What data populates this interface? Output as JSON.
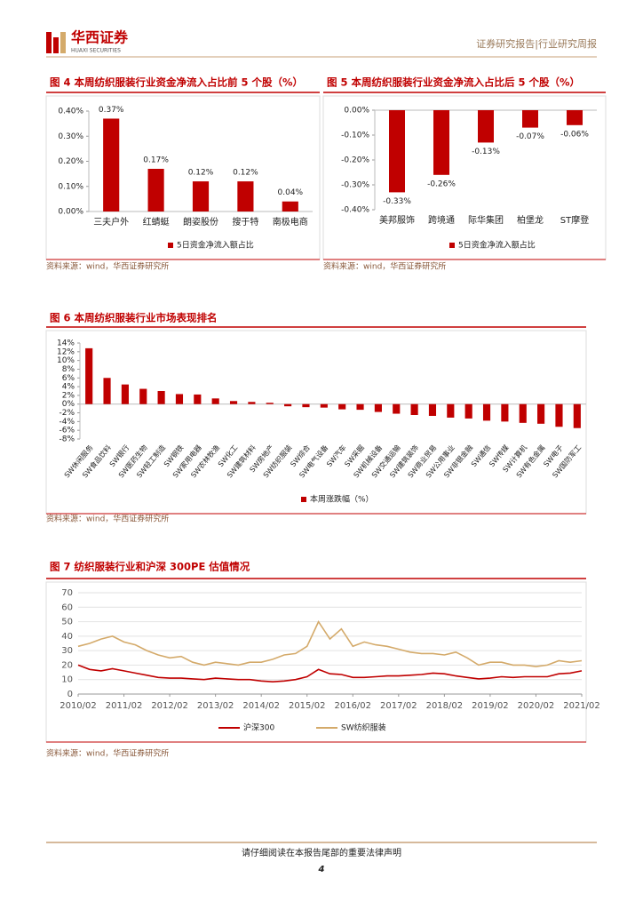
{
  "header": {
    "logo": "华西证券",
    "logo_en": "HUAXI SECURITIES",
    "report_type": "证券研究报告|行业研究周报"
  },
  "chart_data": [
    {
      "type": "bar",
      "title": "图 4 本周纺织服装行业资金净流入占比前 5 个股（%）",
      "categories": [
        "三夫户外",
        "红蜻蜓",
        "朗姿股份",
        "搜于特",
        "南极电商"
      ],
      "series": [
        {
          "name": "5日资金净流入额占比",
          "color": "#c00000",
          "values": [
            0.37,
            0.17,
            0.12,
            0.12,
            0.04
          ],
          "value_labels": [
            "0.37%",
            "0.17%",
            "0.12%",
            "0.12%",
            "0.04%"
          ]
        }
      ],
      "ylim": [
        0,
        0.4
      ],
      "yticks": [
        {
          "value": 0,
          "label": "0.00%"
        },
        {
          "value": 0.1,
          "label": "0.10%"
        },
        {
          "value": 0.2,
          "label": "0.20%"
        },
        {
          "value": 0.3,
          "label": "0.30%"
        },
        {
          "value": 0.4,
          "label": "0.40%"
        }
      ],
      "legend": "bottom",
      "source": "资料来源：wind，华西证券研究所"
    },
    {
      "type": "bar",
      "title": "图 5 本周纺织服装行业资金净流入占比后 5 个股（%）",
      "categories": [
        "美邦服饰",
        "跨境通",
        "际华集团",
        "柏堡龙",
        "ST摩登"
      ],
      "series": [
        {
          "name": "5日资金净流入额占比",
          "color": "#c00000",
          "values": [
            -0.33,
            -0.26,
            -0.13,
            -0.07,
            -0.06
          ],
          "value_labels": [
            "-0.33%",
            "-0.26%",
            "-0.13%",
            "-0.07%",
            "-0.06%"
          ]
        }
      ],
      "ylim": [
        -0.4,
        0
      ],
      "yticks": [
        {
          "value": 0,
          "label": "0.00%"
        },
        {
          "value": -0.1,
          "label": "-0.10%"
        },
        {
          "value": -0.2,
          "label": "-0.20%"
        },
        {
          "value": -0.3,
          "label": "-0.30%"
        },
        {
          "value": -0.4,
          "label": "-0.40%"
        }
      ],
      "legend": "bottom",
      "source": "资料来源：wind，华西证券研究所"
    },
    {
      "type": "bar",
      "title": "图 6 本周纺织服装行业市场表现排名",
      "categories": [
        "SW休闲服务",
        "SW食品饮料",
        "SW银行",
        "SW医药生物",
        "SW轻工制造",
        "SW钢铁",
        "SW家用电器",
        "SW农林牧渔",
        "SW化工",
        "SW建筑材料",
        "SW房地产",
        "SW纺织服装",
        "SW综合",
        "SW电气设备",
        "SW汽车",
        "SW采掘",
        "SW机械设备",
        "SW交通运输",
        "SW建筑装饰",
        "SW商业贸易",
        "SW公用事业",
        "SW非银金融",
        "SW通信",
        "SW传媒",
        "SW计算机",
        "SW有色金属",
        "SW电子",
        "SW国防军工"
      ],
      "series": [
        {
          "name": "本周涨跌幅（%）",
          "color": "#c00000",
          "values": [
            12.8,
            6.0,
            4.5,
            3.5,
            3.0,
            2.3,
            2.2,
            1.3,
            0.7,
            0.5,
            0.3,
            -0.5,
            -0.7,
            -0.8,
            -1.2,
            -1.3,
            -1.8,
            -2.2,
            -2.5,
            -2.7,
            -3.1,
            -3.3,
            -3.8,
            -4.0,
            -4.3,
            -4.5,
            -5.2,
            -5.5
          ]
        }
      ],
      "ylim": [
        -8,
        14
      ],
      "yticks": [
        {
          "value": 14,
          "label": "14%"
        },
        {
          "value": 12,
          "label": "12%"
        },
        {
          "value": 10,
          "label": "10%"
        },
        {
          "value": 8,
          "label": "8%"
        },
        {
          "value": 6,
          "label": "6%"
        },
        {
          "value": 4,
          "label": "4%"
        },
        {
          "value": 2,
          "label": "2%"
        },
        {
          "value": 0,
          "label": "0%"
        },
        {
          "value": -2,
          "label": "-2%"
        },
        {
          "value": -4,
          "label": "-4%"
        },
        {
          "value": -6,
          "label": "-6%"
        },
        {
          "value": -8,
          "label": "-8%"
        }
      ],
      "legend": "bottom",
      "source": "资料来源：wind，华西证券研究所"
    },
    {
      "type": "line",
      "title": "图 7 纺织服装行业和沪深 300PE 估值情况",
      "x": [
        "2010/02",
        null,
        null,
        null,
        "2011/02",
        null,
        null,
        null,
        "2012/02",
        null,
        null,
        null,
        "2013/02",
        null,
        null,
        null,
        "2014/02",
        null,
        null,
        null,
        "2015/02",
        null,
        null,
        null,
        "2016/02",
        null,
        null,
        null,
        "2017/02",
        null,
        null,
        null,
        "2018/02",
        null,
        null,
        null,
        "2019/02",
        null,
        null,
        null,
        "2020/02",
        null,
        null,
        null,
        "2021/02"
      ],
      "series": [
        {
          "name": "沪深300",
          "color": "#c00000",
          "values": [
            20,
            17,
            16,
            17.5,
            16,
            14.5,
            13,
            11.5,
            11,
            11,
            10.5,
            10,
            11,
            10.5,
            10,
            10,
            9,
            8.5,
            9,
            10,
            12,
            17,
            14,
            13.5,
            11.5,
            11.5,
            12,
            12.5,
            12.5,
            13,
            13.5,
            14.5,
            14,
            12.5,
            11.5,
            10.5,
            11,
            12,
            11.5,
            12,
            12,
            12,
            14,
            14.5,
            16
          ]
        },
        {
          "name": "SW纺织服装",
          "color": "#d4aa6a",
          "values": [
            33,
            35,
            38,
            40,
            36,
            34,
            30,
            27,
            25,
            26,
            22,
            20,
            22,
            21,
            20,
            22,
            22,
            24,
            27,
            28,
            33,
            50,
            38,
            45,
            33,
            36,
            34,
            33,
            31,
            29,
            28,
            28,
            27,
            29,
            25,
            20,
            22,
            22,
            20,
            20,
            19,
            20,
            23,
            22,
            23
          ]
        }
      ],
      "ylim": [
        0,
        70
      ],
      "yticks": [
        0,
        10,
        20,
        30,
        40,
        50,
        60,
        70
      ],
      "legend": "bottom",
      "source": "资料来源：wind，华西证券研究所"
    }
  ],
  "footer": {
    "disclaimer": "请仔细阅读在本报告尾部的重要法律声明",
    "page": 4
  }
}
